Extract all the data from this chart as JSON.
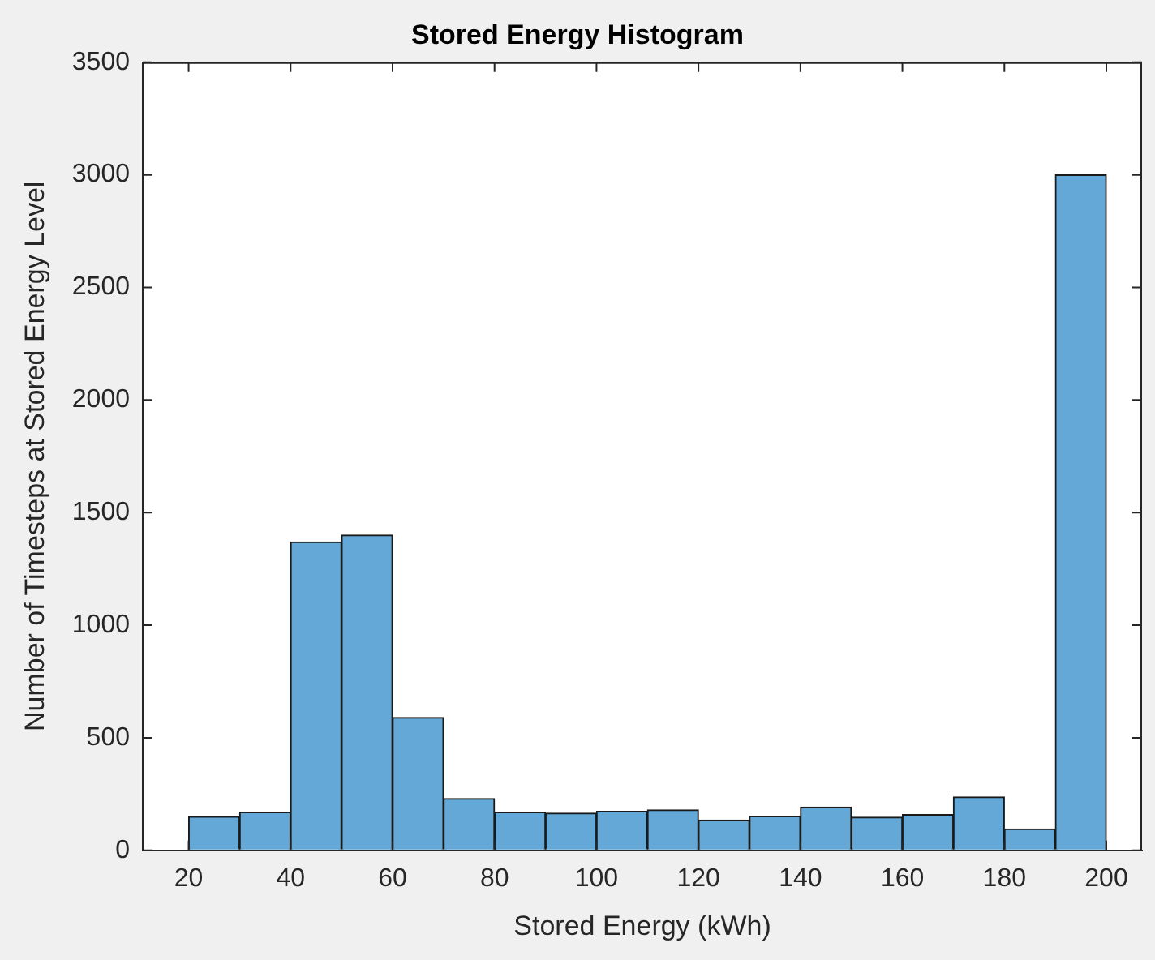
{
  "chart_data": {
    "type": "histogram",
    "title": "Stored Energy Histogram",
    "xlabel": "Stored Energy (kWh)",
    "ylabel": "Number of Timesteps at Stored Energy Level",
    "bins": [
      20,
      30,
      40,
      50,
      60,
      70,
      80,
      90,
      100,
      110,
      120,
      130,
      140,
      150,
      160,
      170,
      180,
      190,
      200
    ],
    "values": [
      150,
      170,
      1370,
      1400,
      590,
      230,
      170,
      165,
      173,
      180,
      135,
      152,
      192,
      147,
      159,
      237,
      95,
      3000
    ],
    "color": "#63a8d7",
    "xlim": [
      11,
      207
    ],
    "xticks": [
      20,
      40,
      60,
      80,
      100,
      120,
      140,
      160,
      180,
      200
    ],
    "ylim": [
      0,
      3500
    ],
    "yticks": [
      0,
      500,
      1000,
      1500,
      2000,
      2500,
      3000,
      3500
    ],
    "grid": false,
    "legend": false
  }
}
